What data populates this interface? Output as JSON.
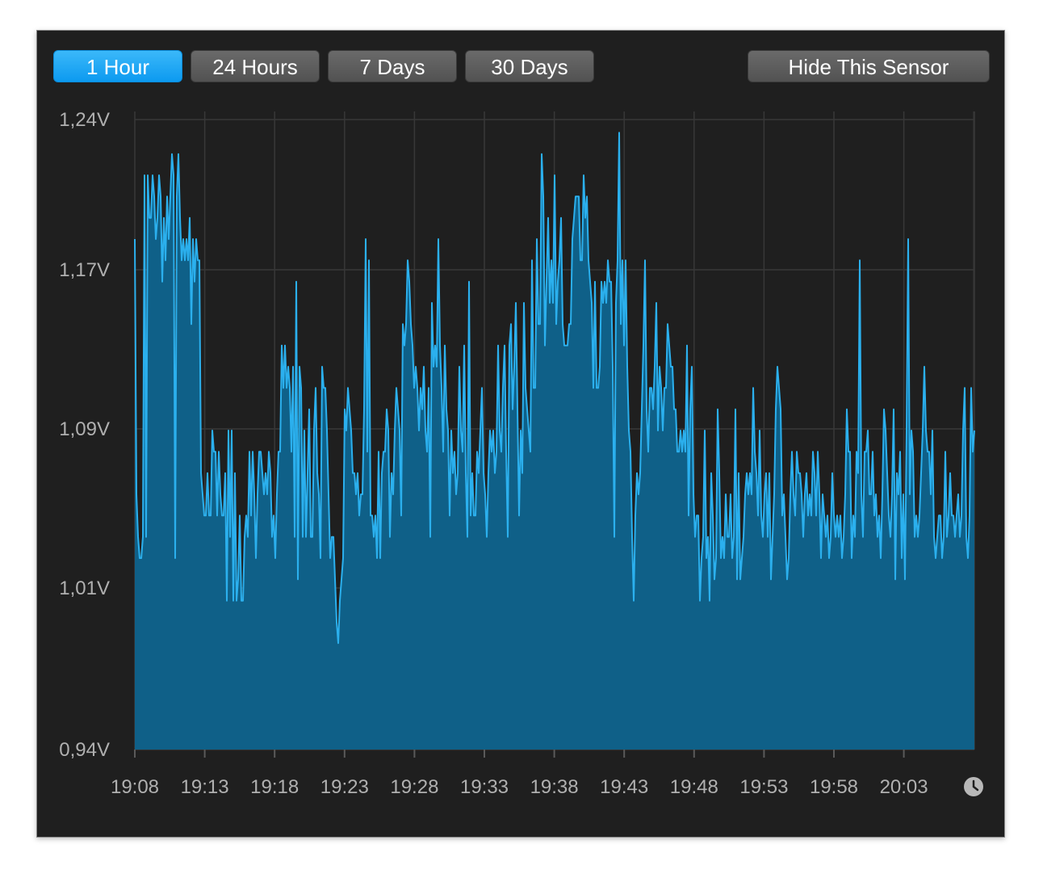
{
  "toolbar": {
    "ranges": [
      "1 Hour",
      "24 Hours",
      "7 Days",
      "30 Days"
    ],
    "active_range": "1 Hour",
    "hide_label": "Hide This Sensor"
  },
  "colors": {
    "accent": "#1aa8f2",
    "fill": "#0f6088",
    "line": "#2bb0ee",
    "window": "#1f1f1f"
  },
  "icons": {
    "clock": "clock-icon"
  },
  "chart_data": {
    "type": "area",
    "ylabel_ticks": [
      "1,24V",
      "1,17V",
      "1,09V",
      "1,01V",
      "0,94V"
    ],
    "ylim": [
      0.94,
      1.24
    ],
    "x_ticks": [
      "19:08",
      "19:13",
      "19:18",
      "19:23",
      "19:28",
      "19:33",
      "19:38",
      "19:43",
      "19:48",
      "19:53",
      "19:58",
      "20:03"
    ],
    "grid": true,
    "series": [
      {
        "values": [
          1.18,
          1.06,
          1.04,
          1.03,
          1.03,
          1.04,
          1.21,
          1.04,
          1.21,
          1.19,
          1.19,
          1.21,
          1.2,
          1.18,
          1.19,
          1.21,
          1.2,
          1.16,
          1.19,
          1.17,
          1.2,
          1.18,
          1.2,
          1.22,
          1.21,
          1.03,
          1.2,
          1.22,
          1.19,
          1.17,
          1.18,
          1.17,
          1.18,
          1.17,
          1.19,
          1.14,
          1.18,
          1.16,
          1.18,
          1.17,
          1.17,
          1.07,
          1.06,
          1.05,
          1.05,
          1.07,
          1.05,
          1.05,
          1.09,
          1.08,
          1.08,
          1.05,
          1.08,
          1.06,
          1.05,
          1.05,
          1.07,
          1.01,
          1.09,
          1.04,
          1.09,
          1.01,
          1.07,
          1.01,
          1.02,
          1.05,
          1.01,
          1.01,
          1.04,
          1.05,
          1.04,
          1.08,
          1.05,
          1.08,
          1.06,
          1.03,
          1.06,
          1.08,
          1.08,
          1.07,
          1.06,
          1.07,
          1.06,
          1.08,
          1.07,
          1.04,
          1.05,
          1.03,
          1.06,
          1.08,
          1.08,
          1.13,
          1.11,
          1.13,
          1.11,
          1.12,
          1.11,
          1.08,
          1.12,
          1.04,
          1.16,
          1.02,
          1.12,
          1.11,
          1.04,
          1.09,
          1.04,
          1.07,
          1.1,
          1.04,
          1.04,
          1.09,
          1.11,
          1.07,
          1.06,
          1.03,
          1.12,
          1.11,
          1.11,
          1.09,
          1.06,
          1.03,
          1.04,
          1.04,
          1.02,
          1.0,
          0.99,
          1.01,
          1.02,
          1.03,
          1.1,
          1.09,
          1.11,
          1.1,
          1.09,
          1.07,
          1.07,
          1.06,
          1.07,
          1.05,
          1.06,
          1.06,
          1.1,
          1.18,
          1.08,
          1.17,
          1.05,
          1.05,
          1.04,
          1.05,
          1.03,
          1.08,
          1.03,
          1.07,
          1.08,
          1.08,
          1.1,
          1.09,
          1.04,
          1.07,
          1.06,
          1.09,
          1.11,
          1.1,
          1.09,
          1.05,
          1.14,
          1.13,
          1.14,
          1.17,
          1.16,
          1.14,
          1.13,
          1.11,
          1.12,
          1.11,
          1.09,
          1.11,
          1.1,
          1.12,
          1.09,
          1.08,
          1.11,
          1.04,
          1.15,
          1.12,
          1.13,
          1.12,
          1.18,
          1.13,
          1.11,
          1.08,
          1.13,
          1.1,
          1.09,
          1.05,
          1.09,
          1.07,
          1.08,
          1.06,
          1.07,
          1.12,
          1.09,
          1.08,
          1.13,
          1.07,
          1.04,
          1.16,
          1.05,
          1.07,
          1.05,
          1.05,
          1.08,
          1.07,
          1.09,
          1.11,
          1.07,
          1.06,
          1.04,
          1.07,
          1.09,
          1.08,
          1.09,
          1.07,
          1.08,
          1.13,
          1.09,
          1.08,
          1.11,
          1.13,
          1.08,
          1.04,
          1.13,
          1.14,
          1.1,
          1.12,
          1.15,
          1.1,
          1.05,
          1.09,
          1.07,
          1.15,
          1.11,
          1.1,
          1.09,
          1.08,
          1.17,
          1.11,
          1.11,
          1.18,
          1.14,
          1.14,
          1.22,
          1.2,
          1.13,
          1.16,
          1.19,
          1.15,
          1.17,
          1.15,
          1.21,
          1.14,
          1.16,
          1.17,
          1.19,
          1.14,
          1.13,
          1.13,
          1.13,
          1.14,
          1.14,
          1.18,
          1.19,
          1.2,
          1.2,
          1.2,
          1.17,
          1.17,
          1.21,
          1.19,
          1.2,
          1.17,
          1.16,
          1.15,
          1.11,
          1.16,
          1.11,
          1.11,
          1.12,
          1.16,
          1.15,
          1.16,
          1.15,
          1.17,
          1.16,
          1.16,
          1.12,
          1.04,
          1.15,
          1.17,
          1.23,
          1.14,
          1.17,
          1.13,
          1.17,
          1.12,
          1.09,
          1.08,
          1.04,
          1.01,
          1.05,
          1.07,
          1.06,
          1.07,
          1.1,
          1.13,
          1.17,
          1.1,
          1.08,
          1.11,
          1.11,
          1.1,
          1.12,
          1.15,
          1.09,
          1.12,
          1.11,
          1.09,
          1.11,
          1.11,
          1.14,
          1.13,
          1.12,
          1.12,
          1.1,
          1.1,
          1.08,
          1.08,
          1.09,
          1.08,
          1.09,
          1.08,
          1.13,
          1.05,
          1.1,
          1.12,
          1.06,
          1.04,
          1.05,
          1.05,
          1.01,
          1.03,
          1.04,
          1.09,
          1.03,
          1.04,
          1.01,
          1.07,
          1.05,
          1.02,
          1.03,
          1.1,
          1.07,
          1.03,
          1.04,
          1.03,
          1.06,
          1.04,
          1.04,
          1.06,
          1.03,
          1.04,
          1.1,
          1.02,
          1.07,
          1.02,
          1.03,
          1.04,
          1.06,
          1.07,
          1.06,
          1.07,
          1.06,
          1.11,
          1.08,
          1.07,
          1.05,
          1.09,
          1.05,
          1.04,
          1.06,
          1.07,
          1.04,
          1.07,
          1.02,
          1.04,
          1.06,
          1.1,
          1.12,
          1.11,
          1.1,
          1.05,
          1.06,
          1.04,
          1.02,
          1.03,
          1.06,
          1.08,
          1.06,
          1.05,
          1.08,
          1.07,
          1.07,
          1.06,
          1.04,
          1.06,
          1.07,
          1.05,
          1.06,
          1.05,
          1.08,
          1.07,
          1.05,
          1.08,
          1.06,
          1.03,
          1.06,
          1.05,
          1.04,
          1.05,
          1.03,
          1.04,
          1.07,
          1.05,
          1.04,
          1.05,
          1.04,
          1.05,
          1.03,
          1.04,
          1.06,
          1.1,
          1.08,
          1.08,
          1.03,
          1.05,
          1.04,
          1.08,
          1.07,
          1.17,
          1.06,
          1.04,
          1.08,
          1.08,
          1.09,
          1.06,
          1.06,
          1.08,
          1.05,
          1.06,
          1.04,
          1.05,
          1.03,
          1.06,
          1.1,
          1.09,
          1.07,
          1.05,
          1.04,
          1.06,
          1.1,
          1.02,
          1.07,
          1.06,
          1.08,
          1.03,
          1.06,
          1.02,
          1.09,
          1.18,
          1.06,
          1.09,
          1.08,
          1.04,
          1.05,
          1.04,
          1.05,
          1.07,
          1.09,
          1.12,
          1.09,
          1.08,
          1.08,
          1.06,
          1.09,
          1.04,
          1.03,
          1.04,
          1.05,
          1.05,
          1.03,
          1.04,
          1.08,
          1.04,
          1.05,
          1.07,
          1.05,
          1.05,
          1.04,
          1.05,
          1.06,
          1.04,
          1.05,
          1.09,
          1.11,
          1.04,
          1.03,
          1.05,
          1.11,
          1.08,
          1.09
        ]
      }
    ]
  }
}
